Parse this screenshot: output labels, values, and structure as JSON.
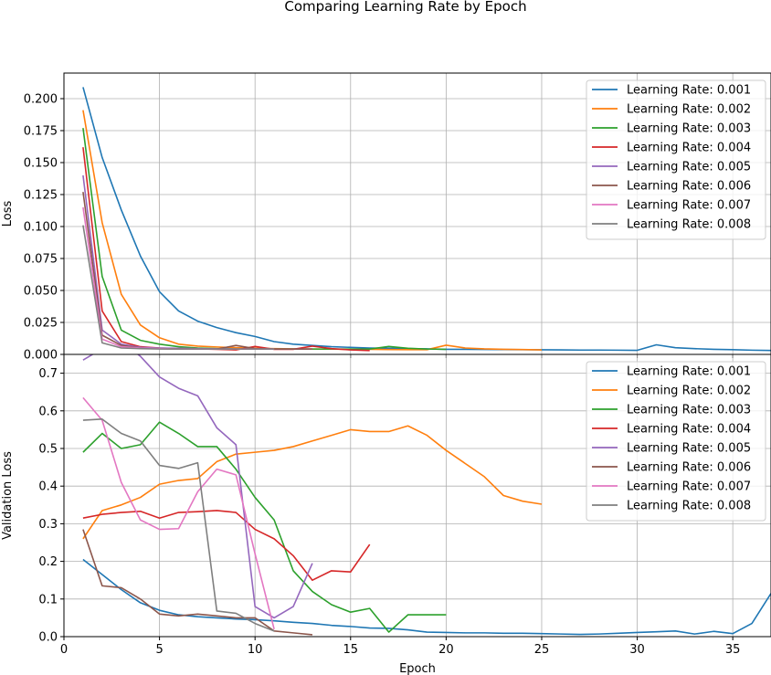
{
  "title": "Comparing Learning Rate by Epoch",
  "colors": [
    "#1f77b4",
    "#ff7f0e",
    "#2ca02c",
    "#d62728",
    "#9467bd",
    "#8c564b",
    "#e377c2",
    "#7f7f7f"
  ],
  "chart_data": [
    {
      "type": "line",
      "title": "",
      "xlabel": "",
      "ylabel": "Loss",
      "xlim": [
        0,
        37
      ],
      "ylim": [
        0,
        0.22
      ],
      "xticks": [
        0,
        5,
        10,
        15,
        20,
        25,
        30,
        35
      ],
      "xtick_labels": [
        "",
        "",
        "",
        "",
        "",
        "",
        "",
        ""
      ],
      "yticks": [
        0,
        0.025,
        0.05,
        0.075,
        0.1,
        0.125,
        0.15,
        0.175,
        0.2
      ],
      "ytick_labels": [
        "0.000",
        "0.025",
        "0.050",
        "0.075",
        "0.100",
        "0.125",
        "0.150",
        "0.175",
        "0.200"
      ],
      "grid": true,
      "legend_position": "top-right",
      "series": [
        {
          "name": "Learning Rate: 0.001",
          "x": [
            1,
            2,
            3,
            4,
            5,
            6,
            7,
            8,
            9,
            10,
            11,
            12,
            13,
            14,
            15,
            16,
            17,
            18,
            19,
            20,
            21,
            22,
            23,
            24,
            25,
            26,
            27,
            28,
            29,
            30,
            31,
            32,
            33,
            34,
            35,
            36,
            37
          ],
          "y": [
            0.209,
            0.154,
            0.113,
            0.077,
            0.049,
            0.034,
            0.026,
            0.021,
            0.017,
            0.014,
            0.01,
            0.008,
            0.007,
            0.006,
            0.0055,
            0.005,
            0.0048,
            0.0045,
            0.0043,
            0.004,
            0.004,
            0.0039,
            0.0038,
            0.0037,
            0.0036,
            0.0035,
            0.0034,
            0.0034,
            0.0033,
            0.0032,
            0.0075,
            0.0052,
            0.0045,
            0.004,
            0.0037,
            0.0033,
            0.0031
          ]
        },
        {
          "name": "Learning Rate: 0.002",
          "x": [
            1,
            2,
            3,
            4,
            5,
            6,
            7,
            8,
            9,
            10,
            11,
            12,
            13,
            14,
            15,
            16,
            17,
            18,
            19,
            20,
            21,
            22,
            23,
            24,
            25
          ],
          "y": [
            0.191,
            0.103,
            0.047,
            0.023,
            0.013,
            0.008,
            0.0065,
            0.0058,
            0.0052,
            0.0048,
            0.0045,
            0.0043,
            0.0042,
            0.0041,
            0.004,
            0.004,
            0.0038,
            0.0037,
            0.0037,
            0.0072,
            0.005,
            0.0043,
            0.004,
            0.0038,
            0.0035
          ]
        },
        {
          "name": "Learning Rate: 0.003",
          "x": [
            1,
            2,
            3,
            4,
            5,
            6,
            7,
            8,
            9,
            10,
            11,
            12,
            13,
            14,
            15,
            16,
            17,
            18,
            19,
            20
          ],
          "y": [
            0.177,
            0.061,
            0.019,
            0.011,
            0.008,
            0.006,
            0.005,
            0.0045,
            0.0042,
            0.0042,
            0.0042,
            0.0042,
            0.0042,
            0.0042,
            0.0042,
            0.0042,
            0.0062,
            0.0048,
            0.0042,
            0.004
          ]
        },
        {
          "name": "Learning Rate: 0.004",
          "x": [
            1,
            2,
            3,
            4,
            5,
            6,
            7,
            8,
            9,
            10,
            11,
            12,
            13,
            14,
            15,
            16
          ],
          "y": [
            0.162,
            0.034,
            0.01,
            0.006,
            0.005,
            0.0045,
            0.0043,
            0.004,
            0.0035,
            0.0062,
            0.004,
            0.004,
            0.0065,
            0.0045,
            0.0035,
            0.003
          ]
        },
        {
          "name": "Learning Rate: 0.005",
          "x": [
            1,
            2,
            3,
            4,
            5,
            6,
            7,
            8,
            9,
            10,
            11,
            12,
            13
          ],
          "y": [
            0.14,
            0.019,
            0.008,
            0.0055,
            0.005,
            0.0048,
            0.0045,
            0.0043,
            0.0042,
            0.0042,
            0.0042,
            0.0042,
            0.0042
          ]
        },
        {
          "name": "Learning Rate: 0.006",
          "x": [
            1,
            2,
            3,
            4,
            5,
            6,
            7,
            8,
            9,
            10,
            11,
            12,
            13
          ],
          "y": [
            0.127,
            0.015,
            0.007,
            0.005,
            0.0045,
            0.0042,
            0.0042,
            0.0042,
            0.007,
            0.0045,
            0.0042,
            0.0042,
            0.0042
          ]
        },
        {
          "name": "Learning Rate: 0.007",
          "x": [
            1,
            2,
            3,
            4,
            5,
            6,
            7,
            8,
            9,
            10,
            11
          ],
          "y": [
            0.115,
            0.012,
            0.006,
            0.005,
            0.0045,
            0.0042,
            0.0042,
            0.0042,
            0.0042,
            0.0042,
            0.0042
          ]
        },
        {
          "name": "Learning Rate: 0.008",
          "x": [
            1,
            2,
            3,
            4,
            5,
            6,
            7,
            8,
            9,
            10,
            11
          ],
          "y": [
            0.101,
            0.009,
            0.005,
            0.0045,
            0.0042,
            0.0042,
            0.0042,
            0.0042,
            0.0042,
            0.0042,
            0.0042
          ]
        }
      ]
    },
    {
      "type": "line",
      "title": "",
      "xlabel": "Epoch",
      "ylabel": "Validation Loss",
      "xlim": [
        0,
        37
      ],
      "ylim": [
        0,
        0.75
      ],
      "xticks": [
        0,
        5,
        10,
        15,
        20,
        25,
        30,
        35
      ],
      "xtick_labels": [
        "0",
        "5",
        "10",
        "15",
        "20",
        "25",
        "30",
        "35"
      ],
      "yticks": [
        0,
        0.1,
        0.2,
        0.3,
        0.4,
        0.5,
        0.6,
        0.7
      ],
      "ytick_labels": [
        "0.0",
        "0.1",
        "0.2",
        "0.3",
        "0.4",
        "0.5",
        "0.6",
        "0.7"
      ],
      "grid": true,
      "legend_position": "top-right",
      "series": [
        {
          "name": "Learning Rate: 0.001",
          "x": [
            1,
            2,
            3,
            4,
            5,
            6,
            7,
            8,
            9,
            10,
            11,
            12,
            13,
            14,
            15,
            16,
            17,
            18,
            19,
            20,
            21,
            22,
            23,
            24,
            25,
            26,
            27,
            28,
            29,
            30,
            31,
            32,
            33,
            34,
            35,
            36,
            37
          ],
          "y": [
            0.205,
            0.165,
            0.125,
            0.09,
            0.07,
            0.058,
            0.053,
            0.05,
            0.047,
            0.045,
            0.042,
            0.038,
            0.035,
            0.03,
            0.027,
            0.023,
            0.022,
            0.018,
            0.012,
            0.011,
            0.01,
            0.01,
            0.009,
            0.009,
            0.008,
            0.007,
            0.006,
            0.007,
            0.009,
            0.011,
            0.013,
            0.015,
            0.007,
            0.014,
            0.008,
            0.035,
            0.115
          ]
        },
        {
          "name": "Learning Rate: 0.002",
          "x": [
            1,
            2,
            3,
            4,
            5,
            6,
            7,
            8,
            9,
            10,
            11,
            12,
            13,
            14,
            15,
            16,
            17,
            18,
            19,
            20,
            21,
            22,
            23,
            24,
            25
          ],
          "y": [
            0.26,
            0.335,
            0.35,
            0.37,
            0.405,
            0.415,
            0.42,
            0.465,
            0.485,
            0.49,
            0.495,
            0.505,
            0.52,
            0.535,
            0.55,
            0.545,
            0.545,
            0.56,
            0.535,
            0.495,
            0.46,
            0.425,
            0.375,
            0.36,
            0.352
          ]
        },
        {
          "name": "Learning Rate: 0.003",
          "x": [
            1,
            2,
            3,
            4,
            5,
            6,
            7,
            8,
            9,
            10,
            11,
            12,
            13,
            14,
            15,
            16,
            17,
            18,
            19,
            20
          ],
          "y": [
            0.49,
            0.54,
            0.5,
            0.51,
            0.57,
            0.54,
            0.505,
            0.505,
            0.445,
            0.37,
            0.31,
            0.175,
            0.12,
            0.085,
            0.065,
            0.075,
            0.012,
            0.058,
            0.058,
            0.058
          ]
        },
        {
          "name": "Learning Rate: 0.004",
          "x": [
            1,
            2,
            3,
            4,
            5,
            6,
            7,
            8,
            9,
            10,
            11,
            12,
            13,
            14,
            15,
            16
          ],
          "y": [
            0.315,
            0.325,
            0.33,
            0.333,
            0.315,
            0.33,
            0.332,
            0.335,
            0.33,
            0.285,
            0.26,
            0.215,
            0.15,
            0.175,
            0.172,
            0.245
          ]
        },
        {
          "name": "Learning Rate: 0.005",
          "x": [
            1,
            2,
            3,
            4,
            5,
            6,
            7,
            8,
            9,
            10,
            11,
            12,
            13
          ],
          "y": [
            0.735,
            0.765,
            0.785,
            0.745,
            0.69,
            0.66,
            0.64,
            0.555,
            0.51,
            0.08,
            0.05,
            0.08,
            0.195
          ]
        },
        {
          "name": "Learning Rate: 0.006",
          "x": [
            1,
            2,
            3,
            4,
            5,
            6,
            7,
            8,
            9,
            10,
            11,
            12,
            13
          ],
          "y": [
            0.285,
            0.135,
            0.13,
            0.1,
            0.06,
            0.055,
            0.06,
            0.055,
            0.05,
            0.05,
            0.015,
            0.01,
            0.005
          ]
        },
        {
          "name": "Learning Rate: 0.007",
          "x": [
            1,
            2,
            3,
            4,
            5,
            6,
            7,
            8,
            9,
            10,
            11
          ],
          "y": [
            0.635,
            0.575,
            0.41,
            0.31,
            0.285,
            0.287,
            0.385,
            0.445,
            0.43,
            0.22,
            0.02
          ]
        },
        {
          "name": "Learning Rate: 0.008",
          "x": [
            1,
            2,
            3,
            4,
            5,
            6,
            7,
            8,
            9,
            10,
            11
          ],
          "y": [
            0.575,
            0.578,
            0.54,
            0.52,
            0.455,
            0.447,
            0.462,
            0.068,
            0.062,
            0.035,
            0.015
          ]
        }
      ]
    }
  ]
}
